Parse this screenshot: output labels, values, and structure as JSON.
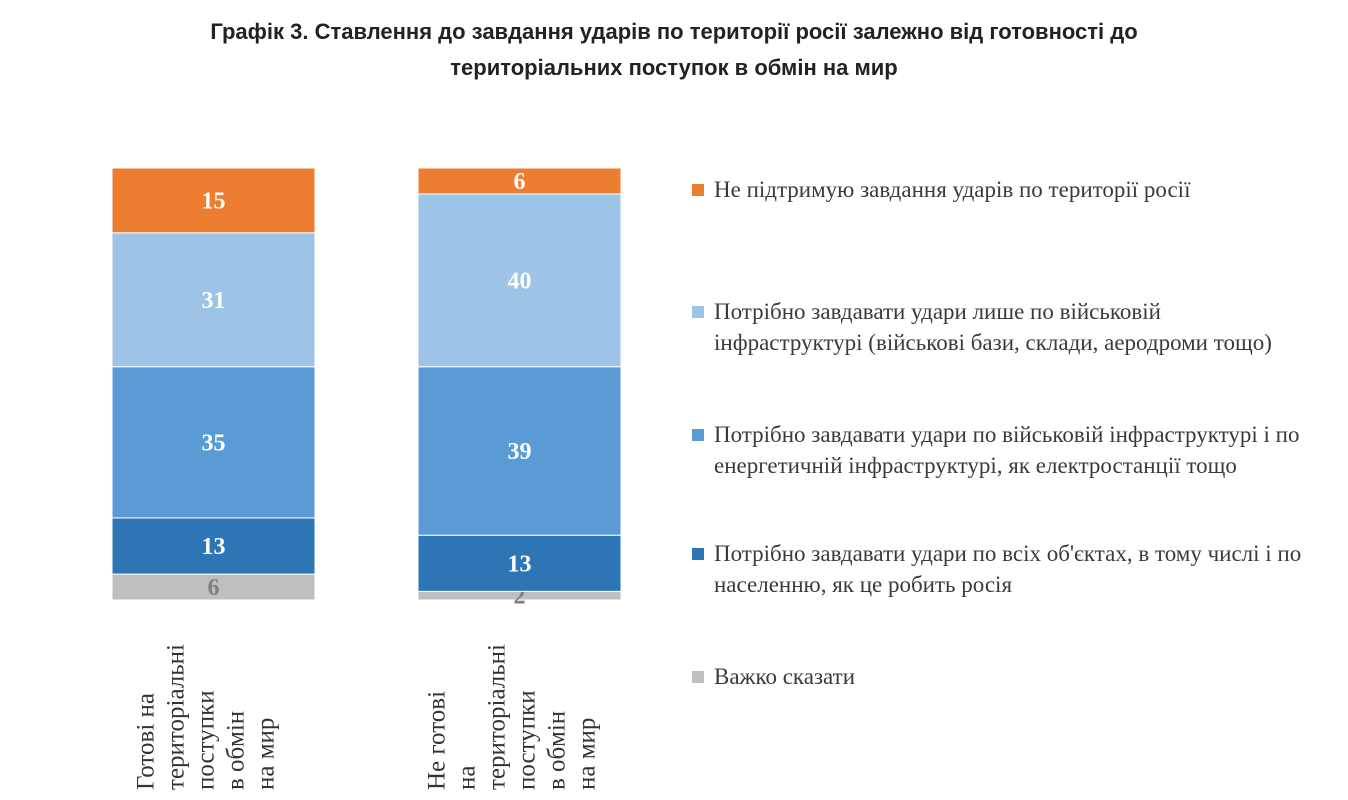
{
  "title": {
    "line1": "Графік 3. Ставлення до завдання ударів по території росії залежно від готовності до",
    "line2": "територіальних поступок в обмін на мир"
  },
  "colors": {
    "orange": "#ED7D31",
    "light_blue": "#9DC3E6",
    "mid_blue": "#5B9BD5",
    "dark_blue": "#2E75B6",
    "gray": "#BFBFBF"
  },
  "legend": [
    {
      "label": "Не підтримую завдання ударів по території росії",
      "color": "#ED7D31"
    },
    {
      "label": "Потрібно завдавати удари  лише по військовій інфраструктурі (військові бази, склади, аеродроми тощо)",
      "color": "#9DC3E6"
    },
    {
      "label": "Потрібно завдавати удари по військовій інфраструктурі і по енергетичній інфраструктурі, як електростанції тощо",
      "color": "#5B9BD5"
    },
    {
      "label": "Потрібно завдавати удари по всіх об'єктах, в тому числі і по населенню, як це робить росія",
      "color": "#2E75B6"
    },
    {
      "label": "Важко сказати",
      "color": "#BFBFBF"
    }
  ],
  "chart_data": {
    "type": "bar",
    "stacked": true,
    "categories": [
      "Готові на територіальні поступки в обмін на мир",
      "Не готові на територіальні поступки в обмін на мир"
    ],
    "series": [
      {
        "name": "Важко сказати",
        "values": [
          6,
          2
        ],
        "color": "#BFBFBF",
        "label_color": "#7F7F7F"
      },
      {
        "name": "Потрібно завдавати удари по всіх об'єктах, в тому числі і по населенню, як це робить росія",
        "values": [
          13,
          13
        ],
        "color": "#2E75B6",
        "label_color": "#FFFFFF"
      },
      {
        "name": "Потрібно завдавати удари по військовій інфраструктурі і по енергетичній інфраструктурі, як електростанції тощо",
        "values": [
          35,
          39
        ],
        "color": "#5B9BD5",
        "label_color": "#FFFFFF"
      },
      {
        "name": "Потрібно завдавати удари  лише по військовій інфраструктурі (військові бази, склади, аеродроми тощо)",
        "values": [
          31,
          40
        ],
        "color": "#9DC3E6",
        "label_color": "#FFFFFF"
      },
      {
        "name": "Не підтримую завдання ударів по території росії",
        "values": [
          15,
          6
        ],
        "color": "#ED7D31",
        "label_color": "#FFFFFF"
      }
    ],
    "ylim": [
      0,
      100
    ],
    "legend_position": "right",
    "grid": false
  }
}
